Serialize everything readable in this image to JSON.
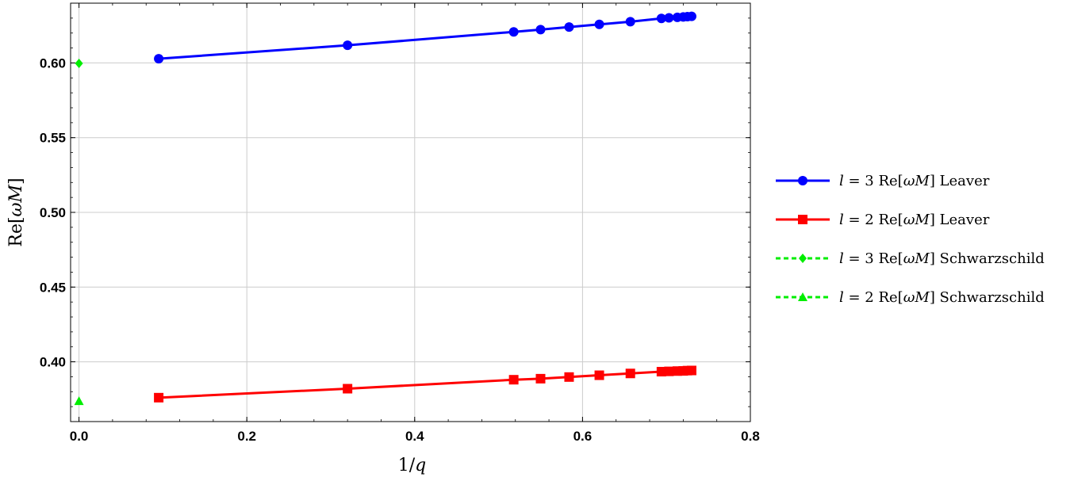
{
  "chart_data": {
    "type": "line",
    "title": "",
    "xlabel": "1/q",
    "ylabel": "Re[ωM]",
    "xlim": [
      -0.01,
      0.8
    ],
    "ylim": [
      0.36,
      0.64
    ],
    "xticks": [
      0.0,
      0.2,
      0.4,
      0.6,
      0.8
    ],
    "xtick_labels": [
      "0.0",
      "0.2",
      "0.4",
      "0.6",
      "0.8"
    ],
    "yticks": [
      0.4,
      0.45,
      0.5,
      0.55,
      0.6
    ],
    "ytick_labels": [
      "0.40",
      "0.45",
      "0.50",
      "0.55",
      "0.60"
    ],
    "grid": true,
    "legend_position": "right",
    "series": [
      {
        "name": "l = 3 Re[ωM] Leaver",
        "color": "#0000ff",
        "marker": "circle",
        "line": "solid",
        "x": [
          0.095,
          0.32,
          0.518,
          0.55,
          0.584,
          0.62,
          0.657,
          0.694,
          0.703,
          0.713,
          0.72,
          0.725,
          0.73
        ],
        "y": [
          0.6028,
          0.6118,
          0.6208,
          0.6223,
          0.624,
          0.6258,
          0.6276,
          0.6298,
          0.6302,
          0.6305,
          0.6308,
          0.631,
          0.6312
        ]
      },
      {
        "name": "l = 2 Re[ωM] Leaver",
        "color": "#ff0000",
        "marker": "square",
        "line": "solid",
        "x": [
          0.095,
          0.32,
          0.518,
          0.55,
          0.584,
          0.62,
          0.657,
          0.694,
          0.703,
          0.713,
          0.72,
          0.725,
          0.73
        ],
        "y": [
          0.376,
          0.382,
          0.388,
          0.3887,
          0.3898,
          0.391,
          0.3922,
          0.3934,
          0.3936,
          0.3938,
          0.3939,
          0.3941,
          0.3942
        ]
      },
      {
        "name": "l = 3 Re[ωM] Schwarzschild",
        "color": "#00ee00",
        "marker": "diamond",
        "line": "dashed",
        "x": [
          0.0
        ],
        "y": [
          0.5997
        ]
      },
      {
        "name": "l = 2 Re[ωM] Schwarzschild",
        "color": "#00ee00",
        "marker": "triangle",
        "line": "dashed",
        "x": [
          0.0
        ],
        "y": [
          0.3737
        ]
      }
    ]
  },
  "legend": [
    {
      "math": "l",
      "eq": " = 3 Re[",
      "w": "ωM",
      "rest": "] Leaver"
    },
    {
      "math": "l",
      "eq": " = 2 Re[",
      "w": "ωM",
      "rest": "] Leaver"
    },
    {
      "math": "l",
      "eq": " = 3 Re[",
      "w": "ωM",
      "rest": "] Schwarzschild"
    },
    {
      "math": "l",
      "eq": " = 2 Re[",
      "w": "ωM",
      "rest": "] Schwarzschild"
    }
  ]
}
